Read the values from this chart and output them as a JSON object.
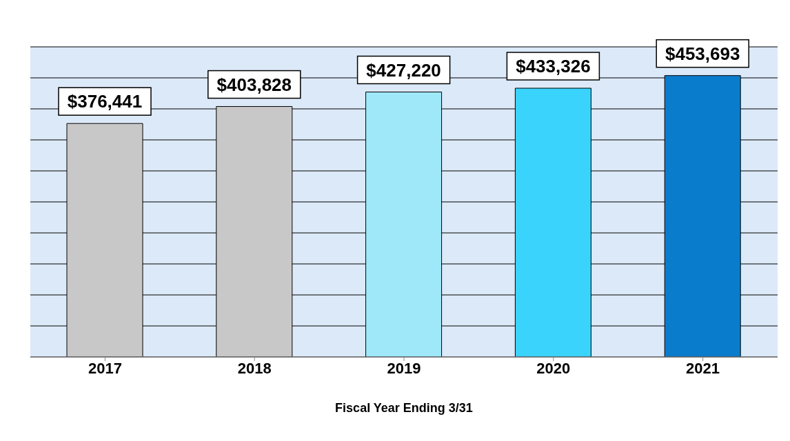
{
  "chart_data": {
    "type": "bar",
    "xlabel": "Fiscal Year Ending 3/31",
    "categories": [
      "2017",
      "2018",
      "2019",
      "2020",
      "2021"
    ],
    "values": [
      376441,
      403828,
      427220,
      433326,
      453693
    ],
    "colors": [
      "#c8c8c8",
      "#c8c8c8",
      "#9ee8fa",
      "#3ad3fc",
      "#0a7ccc"
    ],
    "value_labels": [
      "$376,441",
      "$403,828",
      "$427,220",
      "$433,326",
      "$453,693"
    ],
    "tick_labels": "x",
    "grid": "y"
  }
}
